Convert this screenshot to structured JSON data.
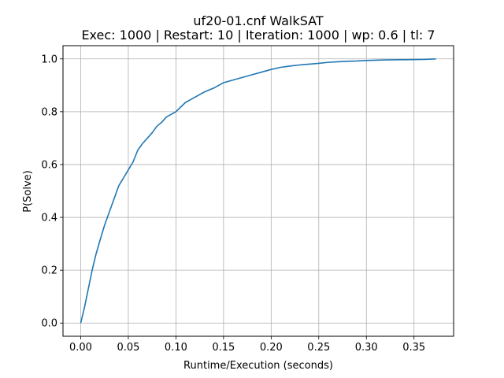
{
  "chart_data": {
    "type": "line",
    "title": "uf20-01.cnf WalkSAT",
    "subtitle": "Exec: 1000 | Restart: 10 | Iteration: 1000 | wp: 0.6 | tl: 7",
    "xlabel": "Runtime/Execution (seconds)",
    "ylabel": "P(Solve)",
    "xlim": [
      -0.0186,
      0.3916
    ],
    "ylim": [
      -0.05,
      1.05
    ],
    "xticks": [
      "0.00",
      "0.05",
      "0.10",
      "0.15",
      "0.20",
      "0.25",
      "0.30",
      "0.35"
    ],
    "yticks": [
      "0.0",
      "0.2",
      "0.4",
      "0.6",
      "0.8",
      "1.0"
    ],
    "grid": true,
    "color": "#1f77b4",
    "series": [
      {
        "x": [
          0.0,
          0.004,
          0.008,
          0.012,
          0.016,
          0.02,
          0.025,
          0.03,
          0.035,
          0.04,
          0.045,
          0.05,
          0.055,
          0.06,
          0.065,
          0.07,
          0.075,
          0.08,
          0.085,
          0.09,
          0.095,
          0.1,
          0.11,
          0.12,
          0.13,
          0.14,
          0.15,
          0.16,
          0.17,
          0.18,
          0.19,
          0.2,
          0.21,
          0.22,
          0.23,
          0.24,
          0.25,
          0.26,
          0.27,
          0.28,
          0.29,
          0.3,
          0.32,
          0.34,
          0.36,
          0.373
        ],
        "y": [
          0.0,
          0.06,
          0.13,
          0.2,
          0.26,
          0.31,
          0.37,
          0.42,
          0.47,
          0.52,
          0.55,
          0.58,
          0.61,
          0.655,
          0.68,
          0.7,
          0.72,
          0.745,
          0.76,
          0.78,
          0.79,
          0.8,
          0.835,
          0.855,
          0.875,
          0.89,
          0.91,
          0.92,
          0.93,
          0.94,
          0.95,
          0.96,
          0.968,
          0.973,
          0.977,
          0.98,
          0.983,
          0.987,
          0.989,
          0.991,
          0.992,
          0.994,
          0.996,
          0.997,
          0.998,
          1.0
        ]
      }
    ]
  }
}
